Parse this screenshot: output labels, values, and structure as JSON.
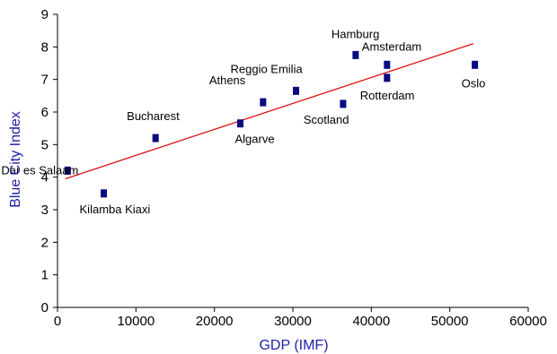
{
  "chart_data": {
    "type": "scatter",
    "title": "",
    "xlabel": "GDP (IMF)",
    "ylabel": "Blue City Index",
    "xlim": [
      0,
      60000
    ],
    "ylim": [
      0,
      9
    ],
    "xticks": [
      "0",
      "10000",
      "20000",
      "30000",
      "40000",
      "50000",
      "60000"
    ],
    "yticks": [
      "0",
      "1",
      "2",
      "3",
      "4",
      "5",
      "6",
      "7",
      "8",
      "9"
    ],
    "grid": false,
    "legend": "none",
    "colors": {
      "marker": "#0a0a80",
      "trendline": "#dd1111",
      "axis_title": "#1f1fa8"
    },
    "points": [
      {
        "label": "Dar es Salaam",
        "x": 1300,
        "y": 4.2
      },
      {
        "label": "Kilamba Kiaxi",
        "x": 5900,
        "y": 3.5
      },
      {
        "label": "Bucharest",
        "x": 12500,
        "y": 5.2
      },
      {
        "label": "Algarve",
        "x": 23300,
        "y": 5.65
      },
      {
        "label": "Athens",
        "x": 26200,
        "y": 6.3
      },
      {
        "label": "Reggio Emilia",
        "x": 30400,
        "y": 6.65
      },
      {
        "label": "Scotland",
        "x": 36400,
        "y": 6.25
      },
      {
        "label": "Hamburg",
        "x": 38000,
        "y": 7.75
      },
      {
        "label": "Amsterdam",
        "x": 42000,
        "y": 7.45
      },
      {
        "label": "Rotterdam",
        "x": 42000,
        "y": 7.05
      },
      {
        "label": "Oslo",
        "x": 53200,
        "y": 7.45
      }
    ],
    "trendline": {
      "x": [
        1000,
        53000
      ],
      "y": [
        3.95,
        8.1
      ]
    }
  }
}
